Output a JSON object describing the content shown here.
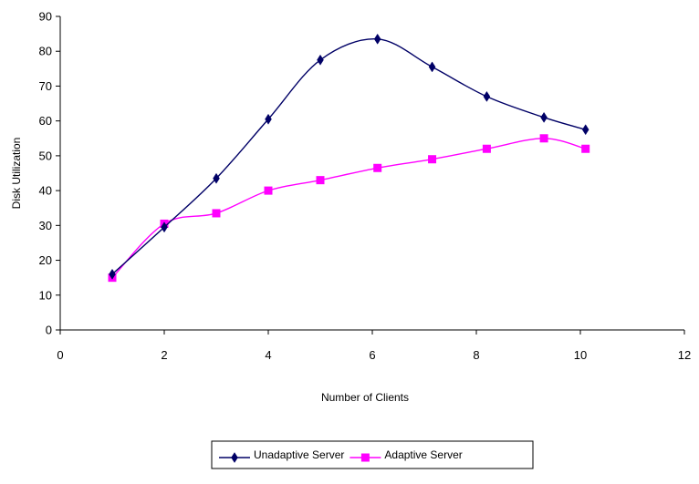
{
  "chart_data": {
    "type": "line",
    "title": "",
    "xlabel": "Number of Clients",
    "ylabel": "Disk Utilization",
    "xlim": [
      0,
      12
    ],
    "ylim": [
      0,
      90
    ],
    "x_ticks": [
      0,
      2,
      4,
      6,
      8,
      10,
      12
    ],
    "y_ticks": [
      0,
      10,
      20,
      30,
      40,
      50,
      60,
      70,
      80,
      90
    ],
    "grid": false,
    "legend_position": "bottom",
    "series": [
      {
        "name": "Unadaptive Server",
        "color": "#000066",
        "marker": "diamond",
        "x": [
          1,
          2,
          3,
          4,
          5,
          6.1,
          7.15,
          8.2,
          9.3,
          10.1
        ],
        "y": [
          16,
          29.5,
          43.5,
          60.5,
          77.5,
          83.5,
          75.5,
          67,
          61,
          57.5
        ]
      },
      {
        "name": "Adaptive Server",
        "color": "#ff00ff",
        "marker": "square",
        "x": [
          1,
          2,
          3,
          4,
          5,
          6.1,
          7.15,
          8.2,
          9.3,
          10.1
        ],
        "y": [
          15,
          30.5,
          33.5,
          40,
          43,
          46.5,
          49,
          52,
          55,
          52
        ]
      }
    ]
  }
}
